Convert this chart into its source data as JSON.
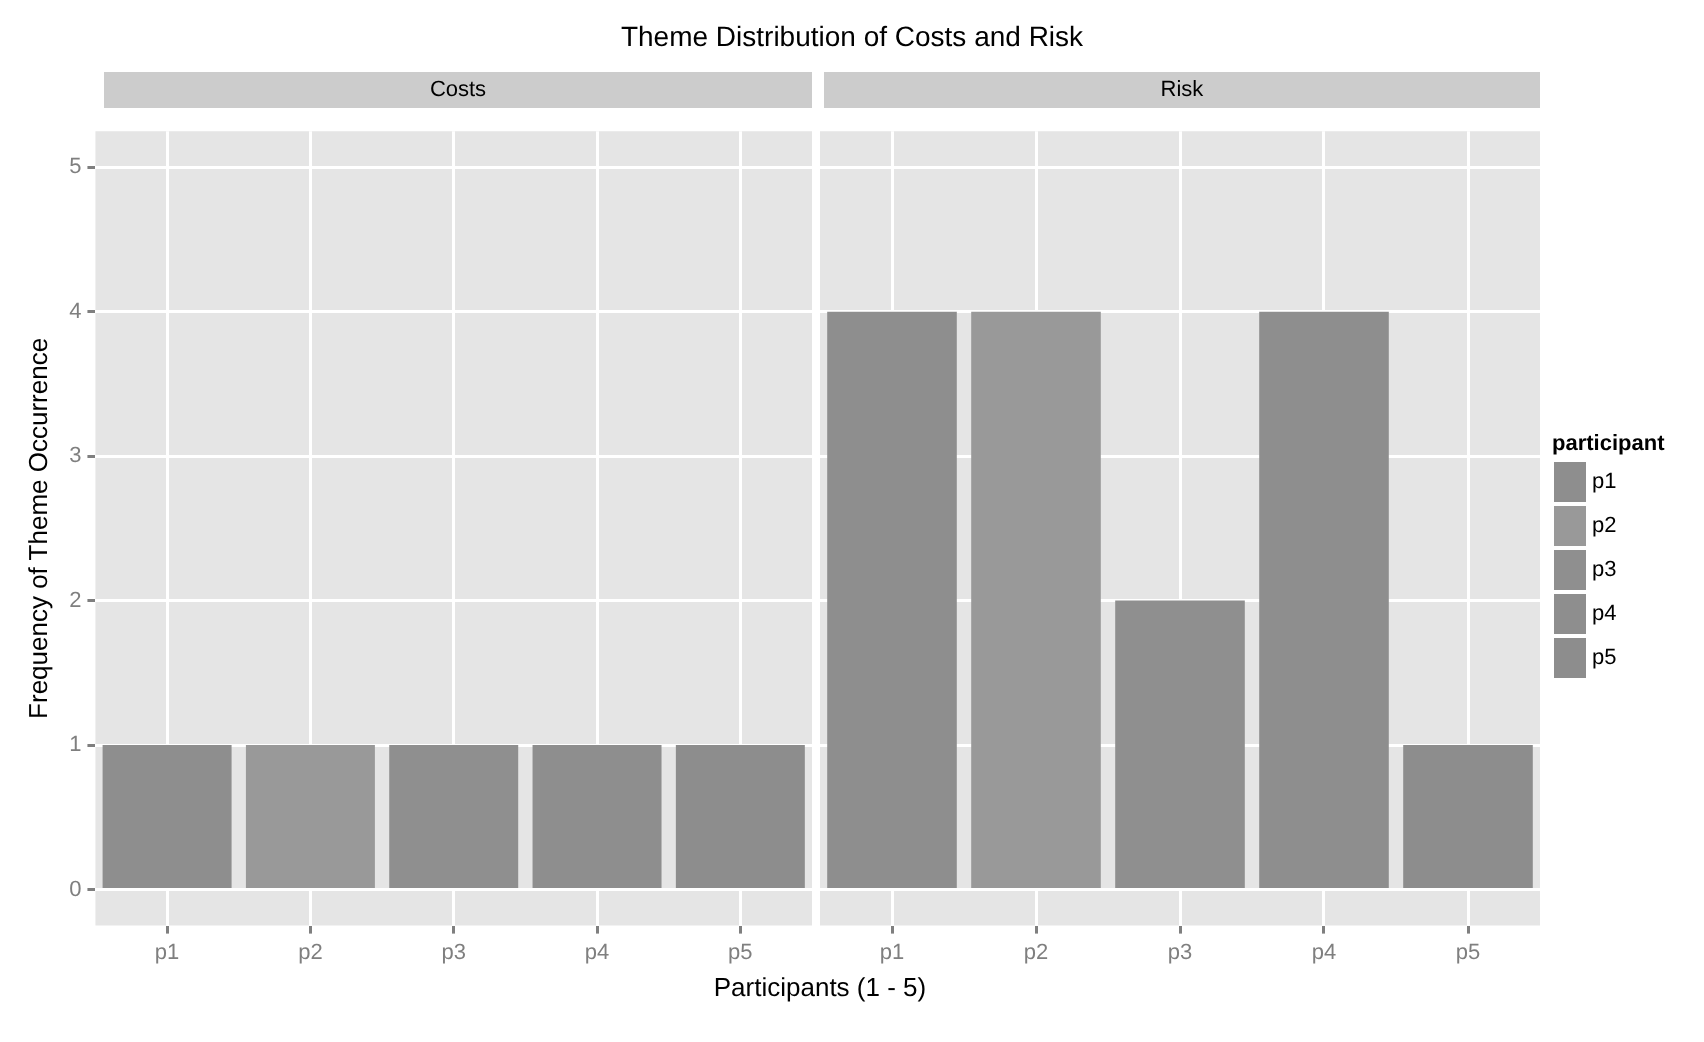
{
  "chart_data": [
    {
      "type": "bar",
      "title": "Theme Distribution of Costs and Risk",
      "subtitle": "Costs",
      "xlabel": "Participants (1 - 5)",
      "ylabel": "Frequency of Theme Occurrence",
      "categories": [
        "p1",
        "p2",
        "p3",
        "p4",
        "p5"
      ],
      "series": [
        {
          "color": "#8e8e8e",
          "values": [
            1,
            null,
            null,
            null,
            null
          ]
        },
        {
          "color": "#999999",
          "values": [
            null,
            1,
            null,
            null,
            null
          ]
        },
        {
          "color": "#8f8f8f",
          "values": [
            null,
            null,
            1,
            null,
            null
          ]
        },
        {
          "color": "#8e8e8e",
          "values": [
            null,
            null,
            null,
            1,
            null
          ]
        },
        {
          "color": "#8d8d8d",
          "values": [
            null,
            null,
            null,
            null,
            1
          ]
        }
      ],
      "ylim": [
        -0.25,
        5.25
      ],
      "yticks": [
        0,
        1,
        2,
        3,
        4,
        5
      ],
      "grid": true,
      "legend": false
    },
    {
      "type": "bar",
      "subtitle": "Risk",
      "legend_title": "participant",
      "categories": [
        "p1",
        "p2",
        "p3",
        "p4",
        "p5"
      ],
      "series": [
        {
          "name": "p1",
          "color": "#8e8e8e",
          "values": [
            4,
            null,
            null,
            null,
            null
          ]
        },
        {
          "name": "p2",
          "color": "#999999",
          "values": [
            null,
            4,
            null,
            null,
            null
          ]
        },
        {
          "name": "p3",
          "color": "#8f8f8f",
          "values": [
            null,
            null,
            2,
            null,
            null
          ]
        },
        {
          "name": "p4",
          "color": "#8e8e8e",
          "values": [
            null,
            null,
            null,
            4,
            null
          ]
        },
        {
          "name": "p5",
          "color": "#8d8d8d",
          "values": [
            null,
            null,
            null,
            null,
            1
          ]
        }
      ],
      "ylim": [
        -0.25,
        5.25
      ],
      "yticks": [
        0,
        1,
        2,
        3,
        4,
        5
      ],
      "grid": true,
      "legend": "right",
      "tick_labels": "x"
    }
  ]
}
